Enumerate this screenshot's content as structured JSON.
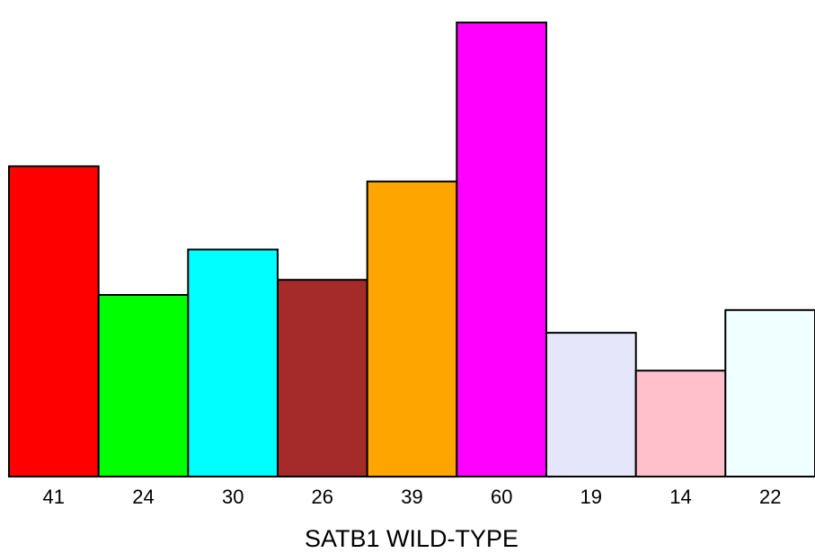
{
  "chart_data": {
    "type": "bar",
    "title": "",
    "xlabel": "SATB1 WILD-TYPE",
    "ylabel": "",
    "categories": [
      "41",
      "24",
      "30",
      "26",
      "39",
      "60",
      "19",
      "14",
      "22"
    ],
    "values": [
      41,
      24,
      30,
      26,
      39,
      60,
      19,
      14,
      22
    ],
    "colors": [
      "#ff0000",
      "#00ff00",
      "#00ffff",
      "#a52a2a",
      "#ffa500",
      "#ff00ff",
      "#e6e6fa",
      "#ffc0cb",
      "#f0ffff"
    ],
    "ylim": [
      0,
      60
    ],
    "grid": false,
    "legend": "none"
  }
}
